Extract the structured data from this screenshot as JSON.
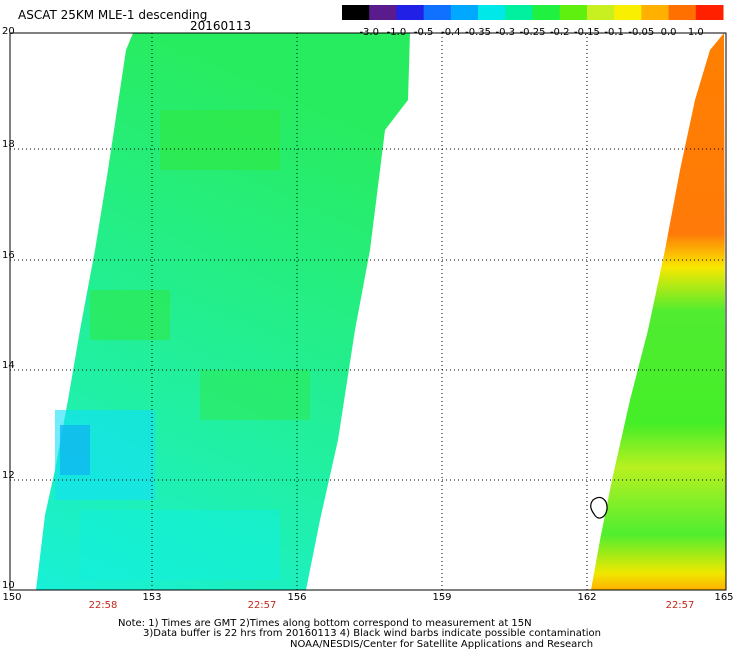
{
  "header": {
    "title": "ASCAT 25KM MLE-1 descending",
    "date": "20160113"
  },
  "colorbar": {
    "labels": [
      "-3.0",
      "-1.0",
      "-0.5",
      "-0.4",
      "-0.35",
      "-0.3",
      "-0.25",
      "-0.2",
      "-0.15",
      "-0.1",
      "-0.05",
      "0.0",
      "1.0"
    ],
    "colors": [
      "#000000",
      "#5a1c8c",
      "#2020e6",
      "#1070ff",
      "#00a8ff",
      "#00e8e8",
      "#00f0a0",
      "#20f040",
      "#60f010",
      "#c8f020",
      "#f8f000",
      "#ffb000",
      "#ff7000",
      "#ff2000"
    ]
  },
  "axes": {
    "lat_labels": [
      "20",
      "18",
      "16",
      "14",
      "12",
      "10"
    ],
    "lon_labels": [
      "150",
      "153",
      "156",
      "159",
      "162",
      "165"
    ]
  },
  "swaths": {
    "left_times": [
      "22:58",
      "22:57"
    ],
    "right_times": [
      "22:57"
    ]
  },
  "notes": {
    "line1": "Note: 1) Times are GMT 2)Times along bottom correspond to measurement at 15N",
    "line2": "3)Data buffer is 22 hrs from 20160113 4) Black wind barbs indicate possible contamination",
    "line3": "NOAA/NESDIS/Center for Satellite Applications and Research"
  }
}
